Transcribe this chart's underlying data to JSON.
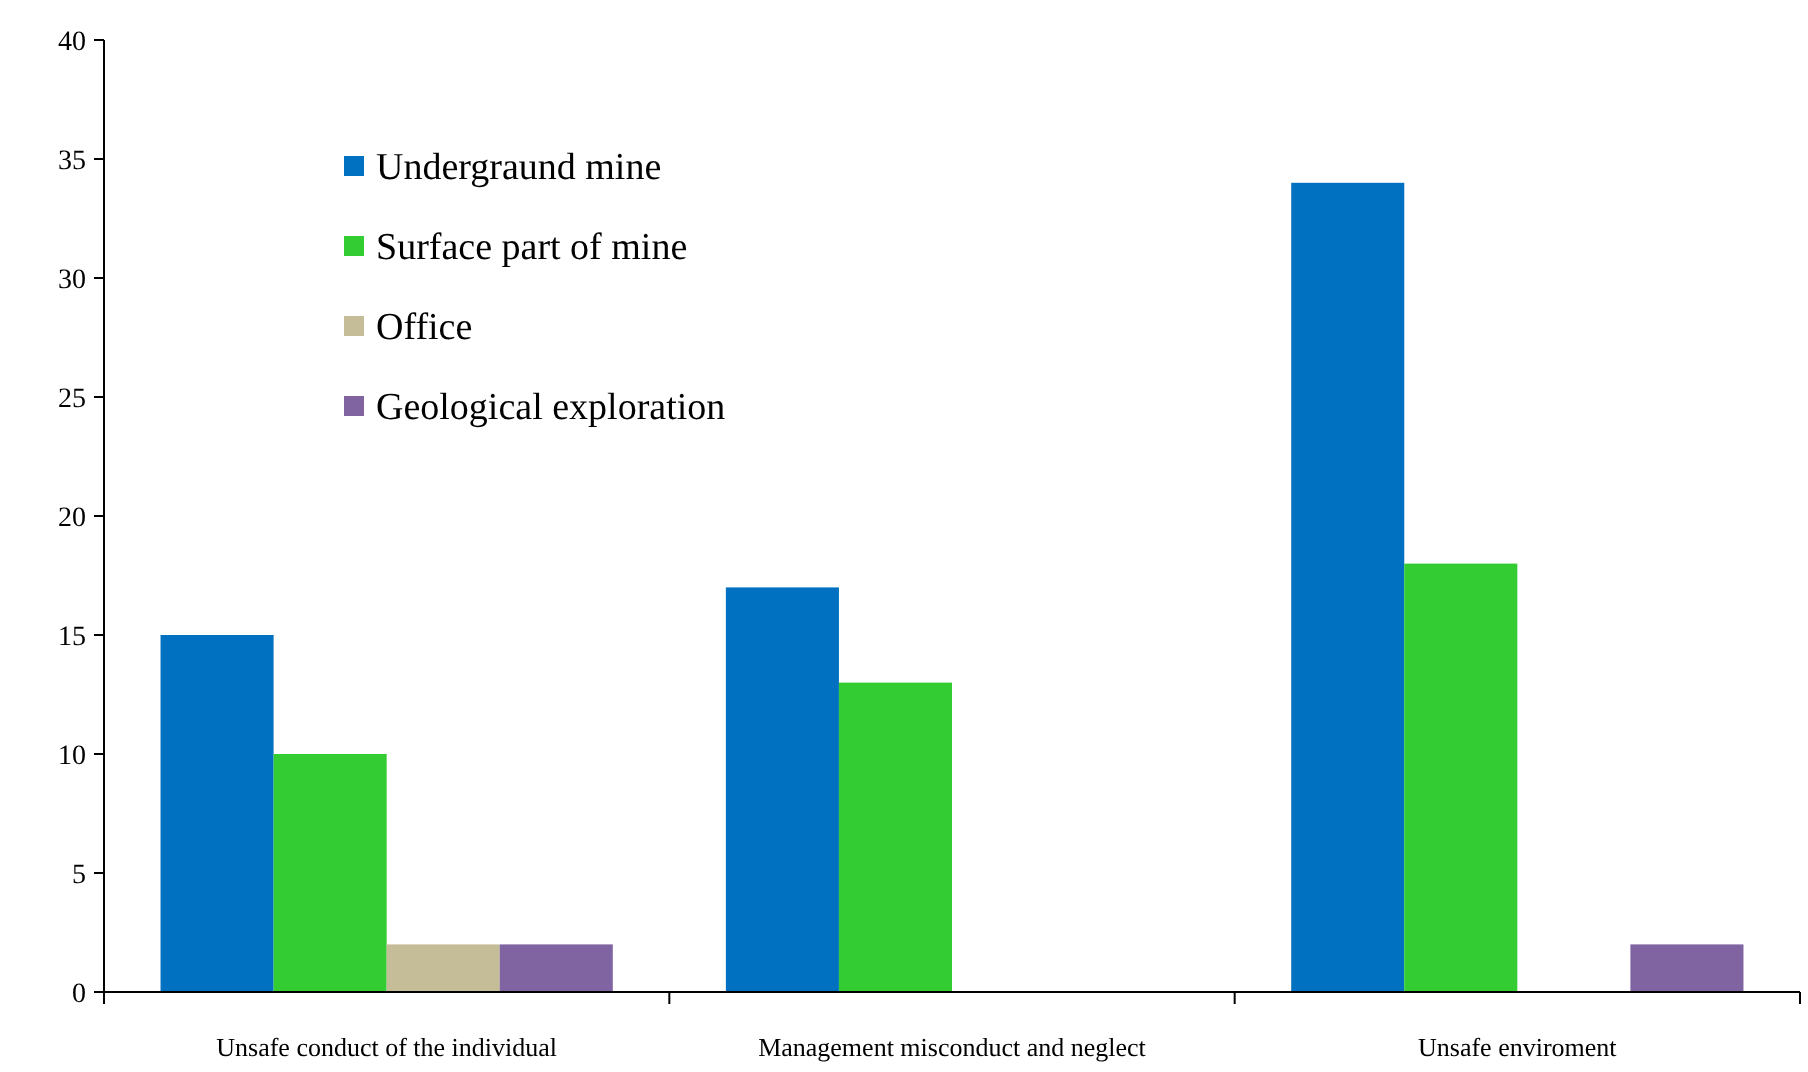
{
  "chart_data": {
    "type": "bar",
    "categories": [
      "Unsafe conduct of the individual",
      "Management misconduct and neglect",
      "Unsafe enviroment"
    ],
    "series": [
      {
        "name": "Undergraund mine",
        "color": "#0070c0",
        "values": [
          15,
          17,
          34
        ]
      },
      {
        "name": "Surface part of mine",
        "color": "#33cc33",
        "values": [
          10,
          13,
          18
        ]
      },
      {
        "name": "Office",
        "color": "#c4bd97",
        "values": [
          2,
          0,
          0
        ]
      },
      {
        "name": "Geological exploration",
        "color": "#8064a2",
        "values": [
          2,
          0,
          2
        ]
      }
    ],
    "ylim": [
      0,
      40
    ],
    "yticks": [
      0,
      5,
      10,
      15,
      20,
      25,
      30,
      35,
      40
    ],
    "grid": false,
    "legend": "top left"
  }
}
